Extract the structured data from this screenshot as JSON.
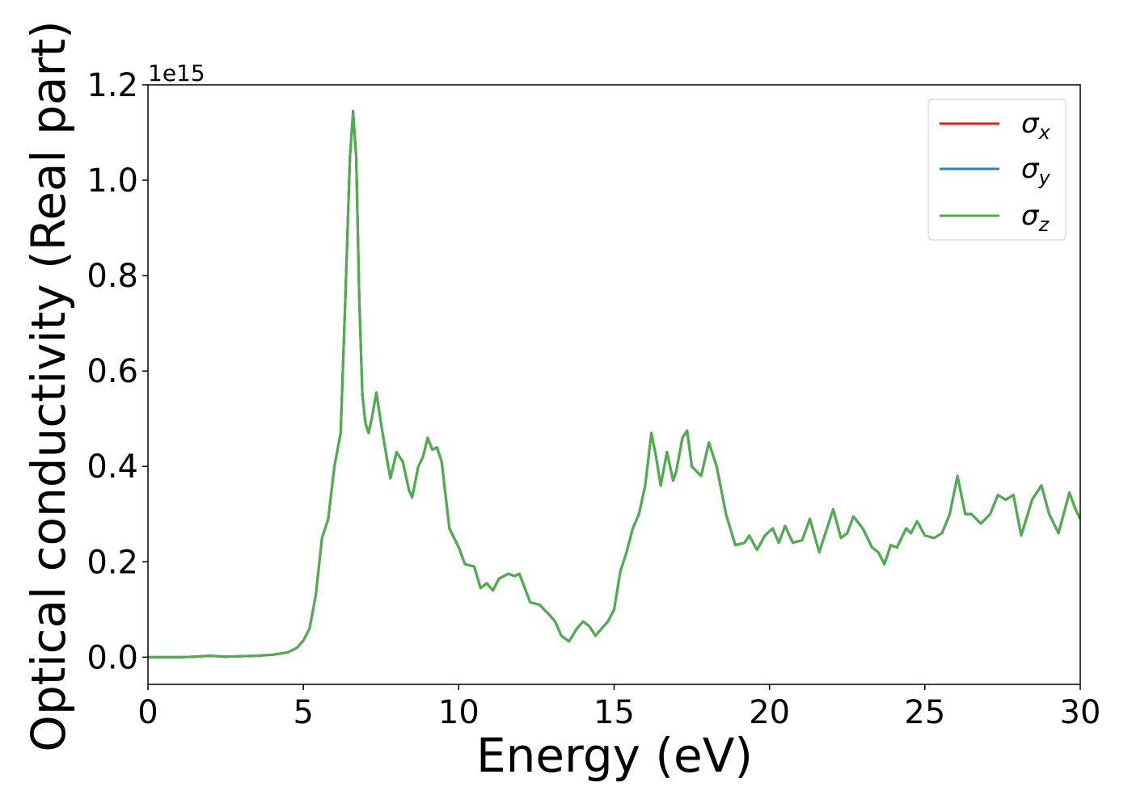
{
  "chart_data": {
    "type": "line",
    "xlabel": "Energy (eV)",
    "ylabel": "Optical conductivity (Real part)",
    "y_offset_label": "1e15",
    "x": [
      0,
      1,
      1.5,
      2,
      2.5,
      3,
      3.5,
      4,
      4.5,
      4.8,
      5,
      5.2,
      5.4,
      5.6,
      5.8,
      6,
      6.2,
      6.35,
      6.5,
      6.6,
      6.7,
      6.8,
      6.9,
      7,
      7.1,
      7.2,
      7.35,
      7.5,
      7.6,
      7.8,
      8,
      8.2,
      8.4,
      8.5,
      8.7,
      8.85,
      9,
      9.15,
      9.3,
      9.45,
      9.7,
      10,
      10.2,
      10.5,
      10.7,
      10.9,
      11.1,
      11.3,
      11.6,
      11.8,
      11.95,
      12.3,
      12.6,
      12.9,
      13.1,
      13.3,
      13.55,
      13.8,
      14,
      14.2,
      14.4,
      14.6,
      14.8,
      15,
      15.2,
      15.4,
      15.6,
      15.8,
      16,
      16.2,
      16.35,
      16.5,
      16.7,
      16.9,
      17,
      17.2,
      17.35,
      17.5,
      17.8,
      18.05,
      18.3,
      18.6,
      18.9,
      19.2,
      19.35,
      19.6,
      19.85,
      20.1,
      20.3,
      20.5,
      20.75,
      21.05,
      21.3,
      21.6,
      22.05,
      22.3,
      22.5,
      22.7,
      23,
      23.3,
      23.5,
      23.7,
      23.9,
      24.1,
      24.4,
      24.55,
      24.75,
      25,
      25.3,
      25.55,
      25.8,
      26.05,
      26.3,
      26.5,
      26.8,
      27.1,
      27.35,
      27.6,
      27.85,
      28.1,
      28.45,
      28.75,
      29,
      29.3,
      29.65,
      29.85,
      30
    ],
    "series": [
      {
        "name": "σx",
        "color": "#e41a1c",
        "values": [
          0,
          0,
          0.001,
          0.003,
          0.001,
          0.002,
          0.003,
          0.005,
          0.01,
          0.02,
          0.035,
          0.06,
          0.13,
          0.25,
          0.29,
          0.4,
          0.47,
          0.75,
          1.05,
          1.14,
          1.05,
          0.75,
          0.55,
          0.49,
          0.47,
          0.5,
          0.555,
          0.49,
          0.45,
          0.375,
          0.43,
          0.41,
          0.35,
          0.335,
          0.4,
          0.42,
          0.46,
          0.435,
          0.44,
          0.41,
          0.27,
          0.23,
          0.195,
          0.19,
          0.145,
          0.155,
          0.14,
          0.165,
          0.175,
          0.17,
          0.175,
          0.115,
          0.11,
          0.09,
          0.075,
          0.045,
          0.033,
          0.06,
          0.075,
          0.065,
          0.045,
          0.06,
          0.075,
          0.1,
          0.18,
          0.22,
          0.27,
          0.3,
          0.36,
          0.47,
          0.42,
          0.36,
          0.43,
          0.37,
          0.39,
          0.46,
          0.475,
          0.4,
          0.38,
          0.45,
          0.4,
          0.3,
          0.235,
          0.24,
          0.255,
          0.225,
          0.255,
          0.27,
          0.24,
          0.275,
          0.24,
          0.245,
          0.29,
          0.22,
          0.31,
          0.25,
          0.26,
          0.295,
          0.27,
          0.23,
          0.22,
          0.195,
          0.235,
          0.23,
          0.27,
          0.26,
          0.285,
          0.255,
          0.25,
          0.26,
          0.3,
          0.38,
          0.3,
          0.3,
          0.28,
          0.3,
          0.34,
          0.33,
          0.34,
          0.255,
          0.33,
          0.36,
          0.3,
          0.26,
          0.345,
          0.31,
          0.29
        ]
      },
      {
        "name": "σy",
        "color": "#377eb8",
        "values": [
          0,
          0,
          0.001,
          0.003,
          0.001,
          0.002,
          0.003,
          0.005,
          0.01,
          0.02,
          0.035,
          0.06,
          0.13,
          0.25,
          0.29,
          0.4,
          0.47,
          0.75,
          1.05,
          1.145,
          1.05,
          0.75,
          0.55,
          0.49,
          0.47,
          0.5,
          0.555,
          0.49,
          0.45,
          0.375,
          0.43,
          0.41,
          0.35,
          0.335,
          0.4,
          0.42,
          0.46,
          0.435,
          0.44,
          0.41,
          0.27,
          0.23,
          0.195,
          0.19,
          0.145,
          0.155,
          0.14,
          0.165,
          0.175,
          0.17,
          0.175,
          0.115,
          0.11,
          0.09,
          0.075,
          0.045,
          0.033,
          0.06,
          0.075,
          0.065,
          0.045,
          0.06,
          0.075,
          0.1,
          0.18,
          0.22,
          0.27,
          0.3,
          0.36,
          0.47,
          0.42,
          0.36,
          0.43,
          0.37,
          0.39,
          0.46,
          0.475,
          0.4,
          0.38,
          0.45,
          0.4,
          0.3,
          0.235,
          0.24,
          0.255,
          0.225,
          0.255,
          0.27,
          0.24,
          0.275,
          0.24,
          0.245,
          0.29,
          0.22,
          0.31,
          0.25,
          0.26,
          0.295,
          0.27,
          0.23,
          0.22,
          0.195,
          0.235,
          0.23,
          0.27,
          0.26,
          0.285,
          0.255,
          0.25,
          0.26,
          0.3,
          0.38,
          0.3,
          0.3,
          0.28,
          0.3,
          0.34,
          0.33,
          0.34,
          0.255,
          0.33,
          0.36,
          0.3,
          0.26,
          0.345,
          0.31,
          0.29
        ]
      },
      {
        "name": "σz",
        "color": "#4daf4a",
        "values": [
          0,
          0,
          0.001,
          0.003,
          0.001,
          0.002,
          0.003,
          0.005,
          0.01,
          0.02,
          0.035,
          0.06,
          0.13,
          0.25,
          0.29,
          0.4,
          0.47,
          0.75,
          1.05,
          1.14,
          1.05,
          0.75,
          0.55,
          0.49,
          0.47,
          0.5,
          0.555,
          0.49,
          0.45,
          0.375,
          0.43,
          0.41,
          0.35,
          0.335,
          0.4,
          0.42,
          0.46,
          0.435,
          0.44,
          0.41,
          0.27,
          0.23,
          0.195,
          0.19,
          0.145,
          0.155,
          0.14,
          0.165,
          0.175,
          0.17,
          0.175,
          0.115,
          0.11,
          0.09,
          0.075,
          0.045,
          0.033,
          0.06,
          0.075,
          0.065,
          0.045,
          0.06,
          0.075,
          0.1,
          0.18,
          0.22,
          0.27,
          0.3,
          0.36,
          0.47,
          0.42,
          0.36,
          0.43,
          0.37,
          0.39,
          0.46,
          0.475,
          0.4,
          0.38,
          0.45,
          0.4,
          0.3,
          0.235,
          0.24,
          0.255,
          0.225,
          0.255,
          0.27,
          0.24,
          0.275,
          0.24,
          0.245,
          0.29,
          0.22,
          0.31,
          0.25,
          0.26,
          0.295,
          0.27,
          0.23,
          0.22,
          0.195,
          0.235,
          0.23,
          0.27,
          0.26,
          0.285,
          0.255,
          0.25,
          0.26,
          0.3,
          0.38,
          0.3,
          0.3,
          0.28,
          0.3,
          0.34,
          0.33,
          0.34,
          0.255,
          0.33,
          0.36,
          0.3,
          0.26,
          0.345,
          0.31,
          0.29
        ]
      }
    ],
    "xlim": [
      0,
      30
    ],
    "xticks": [
      0,
      5,
      10,
      15,
      20,
      25,
      30
    ],
    "ylim": [
      -0.057,
      1.2
    ],
    "yticks": [
      {
        "value": 0,
        "label": "0.0"
      },
      0.2,
      0.4,
      0.6,
      0.8,
      {
        "value": 1,
        "label": "1.0"
      },
      1.2
    ],
    "grid": false,
    "legend": "upper right"
  }
}
